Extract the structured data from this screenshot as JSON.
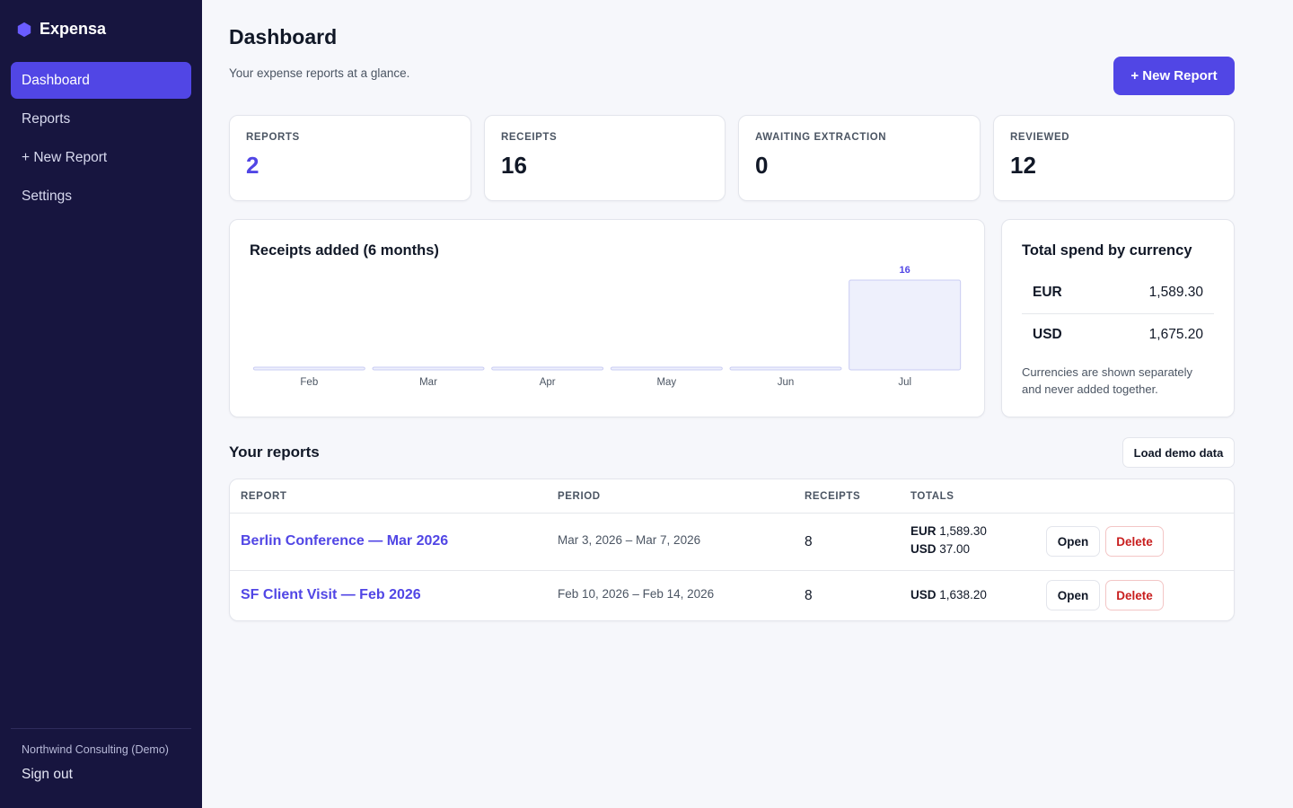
{
  "app": {
    "name": "Expensa",
    "brand_color": "#5146e5",
    "sidebar_color": "#17153f"
  },
  "sidebar": {
    "items": [
      {
        "label": "Dashboard",
        "active": true
      },
      {
        "label": "Reports",
        "active": false
      },
      {
        "label": "+ New Report",
        "active": false
      },
      {
        "label": "Settings",
        "active": false
      }
    ],
    "org_name": "Northwind Consulting (Demo)",
    "sign_out": "Sign out"
  },
  "header": {
    "title": "Dashboard",
    "subtitle": "Your expense reports at a glance.",
    "new_report_label": "+ New Report"
  },
  "stats": [
    {
      "label": "REPORTS",
      "value": "2"
    },
    {
      "label": "RECEIPTS",
      "value": "16"
    },
    {
      "label": "AWAITING EXTRACTION",
      "value": "0"
    },
    {
      "label": "REVIEWED",
      "value": "12"
    }
  ],
  "chart": {
    "title": "Receipts added (6 months)"
  },
  "chart_data": {
    "type": "bar",
    "categories": [
      "Feb",
      "Mar",
      "Apr",
      "May",
      "Jun",
      "Jul"
    ],
    "values": [
      0,
      0,
      0,
      0,
      0,
      16
    ],
    "value_labels": [
      "",
      "",
      "",
      "",
      "",
      "16"
    ],
    "title": "Receipts added (6 months)",
    "xlabel": "",
    "ylabel": "",
    "ylim": [
      0,
      16
    ],
    "grid": false
  },
  "currency": {
    "title": "Total spend by currency",
    "rows": [
      {
        "code": "EUR",
        "amount": "1,589.30"
      },
      {
        "code": "USD",
        "amount": "1,675.20"
      }
    ],
    "note": "Currencies are shown separately and never added together."
  },
  "reports_section": {
    "title": "Your reports",
    "load_demo_label": "Load demo data",
    "columns": [
      "REPORT",
      "PERIOD",
      "RECEIPTS",
      "TOTALS"
    ],
    "rows": [
      {
        "name": "Berlin Conference — Mar 2026",
        "period": "Mar 3, 2026 – Mar 7, 2026",
        "receipts": "8",
        "totals": [
          {
            "code": "EUR",
            "amount": "1,589.30"
          },
          {
            "code": "USD",
            "amount": "37.00"
          }
        ],
        "open_label": "Open",
        "delete_label": "Delete"
      },
      {
        "name": "SF Client Visit — Feb 2026",
        "period": "Feb 10, 2026 – Feb 14, 2026",
        "receipts": "8",
        "totals": [
          {
            "code": "USD",
            "amount": "1,638.20"
          }
        ],
        "open_label": "Open",
        "delete_label": "Delete"
      }
    ]
  }
}
